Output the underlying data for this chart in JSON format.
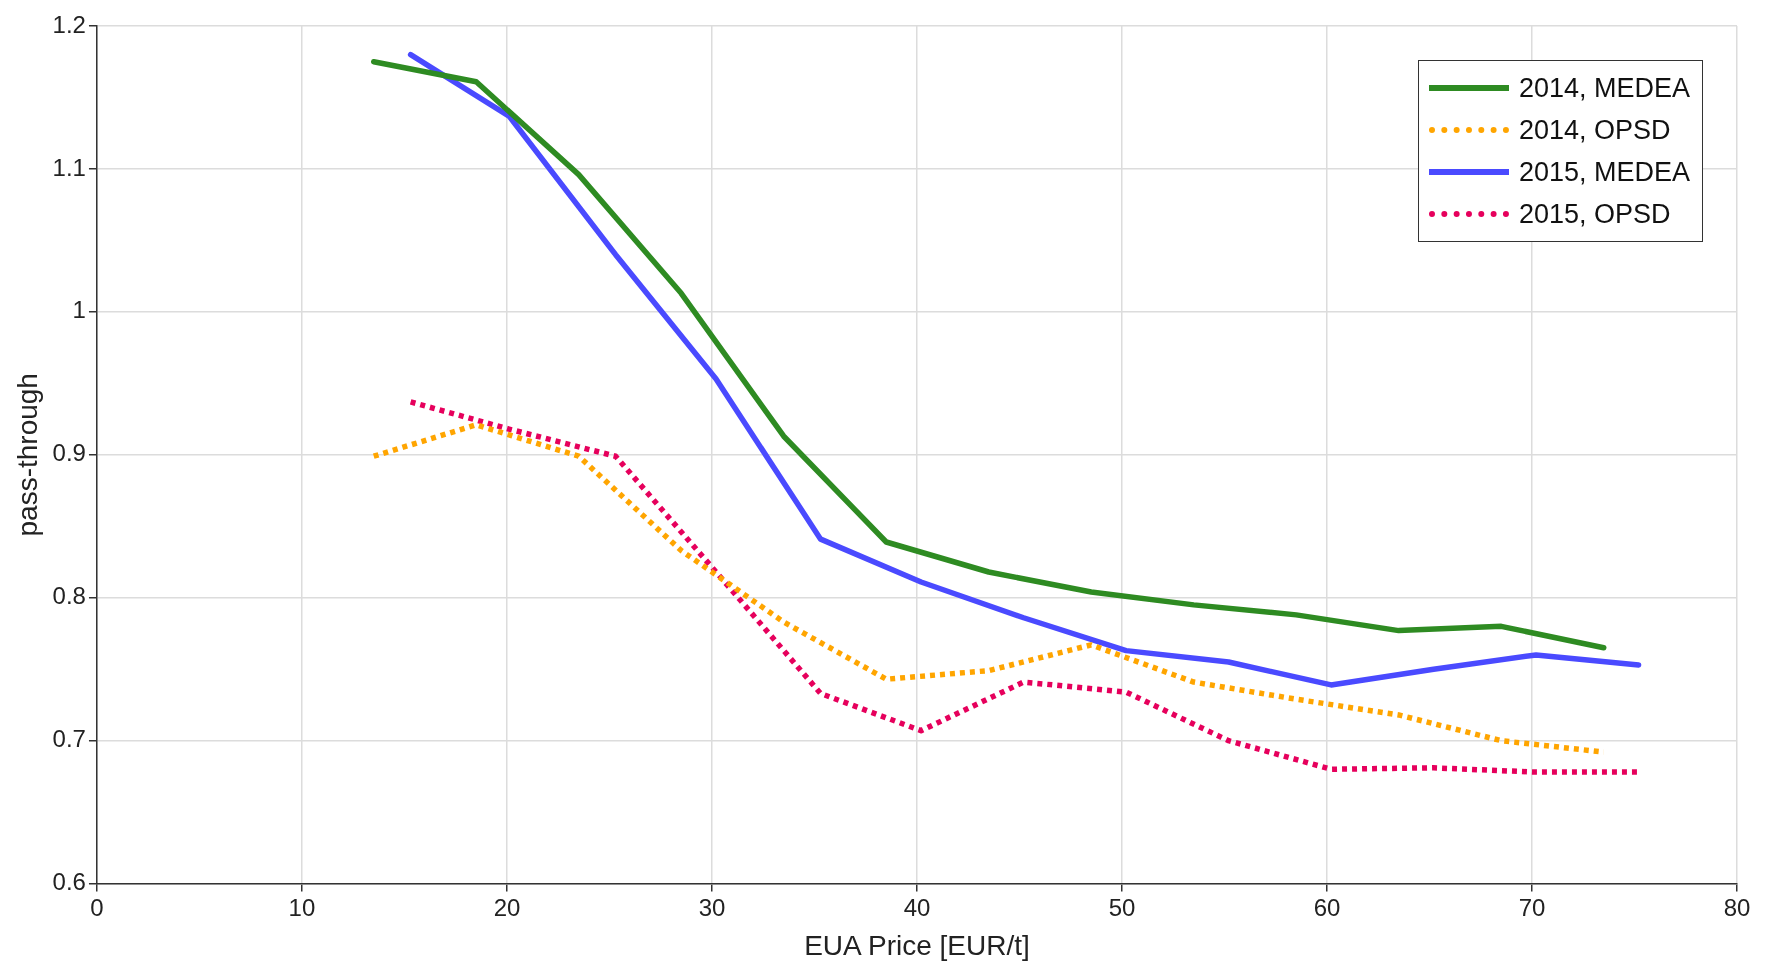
{
  "chart_data": {
    "type": "line",
    "xlabel": "EUA Price [EUR/t]",
    "ylabel": "pass-through",
    "xlim": [
      0,
      80
    ],
    "xticks": [
      0,
      10,
      20,
      30,
      40,
      50,
      60,
      70,
      80
    ],
    "ylim": [
      0.6,
      1.2
    ],
    "yticks": [
      0.6,
      0.7,
      0.8,
      0.9,
      1,
      1.1,
      1.2
    ],
    "grid": true,
    "legend": "top right",
    "marker": "none",
    "series": [
      {
        "name": "2014, MEDEA",
        "color": "#2e8b22",
        "line_style": "solid",
        "x": [
          13.5,
          18.5,
          23.5,
          28.5,
          33.5,
          38.5,
          43.5,
          48.5,
          53.5,
          58.5,
          63.5,
          68.5,
          73.5
        ],
        "values": [
          1.175,
          1.161,
          1.096,
          1.013,
          0.913,
          0.839,
          0.818,
          0.804,
          0.795,
          0.788,
          0.777,
          0.78,
          0.765
        ]
      },
      {
        "name": "2014, OPSD",
        "color": "#ffa500",
        "line_style": "dotted",
        "x": [
          13.5,
          18.5,
          23.5,
          28.5,
          33.5,
          38.5,
          43.5,
          48.5,
          53.5,
          58.5,
          63.5,
          68.5,
          73.5
        ],
        "values": [
          0.899,
          0.921,
          0.899,
          0.833,
          0.783,
          0.743,
          0.749,
          0.767,
          0.741,
          0.729,
          0.718,
          0.7,
          0.692
        ]
      },
      {
        "name": "2015, MEDEA",
        "color": "#4a4aff",
        "line_style": "solid",
        "x": [
          15.3,
          20.1,
          25.3,
          30.2,
          35.3,
          40.2,
          45.2,
          50.2,
          55.2,
          60.2,
          65.2,
          70.2,
          75.2
        ],
        "values": [
          1.18,
          1.137,
          1.04,
          0.953,
          0.841,
          0.811,
          0.786,
          0.763,
          0.755,
          0.739,
          0.75,
          0.76,
          0.753
        ]
      },
      {
        "name": "2015, OPSD",
        "color": "#e6005c",
        "line_style": "dotted",
        "x": [
          15.3,
          20.1,
          25.3,
          30.2,
          35.3,
          40.2,
          45.2,
          50.2,
          55.2,
          60.2,
          65.2,
          70.2,
          75.2
        ],
        "values": [
          0.937,
          0.918,
          0.899,
          0.818,
          0.733,
          0.707,
          0.741,
          0.734,
          0.7,
          0.68,
          0.681,
          0.678,
          0.678
        ]
      }
    ]
  }
}
